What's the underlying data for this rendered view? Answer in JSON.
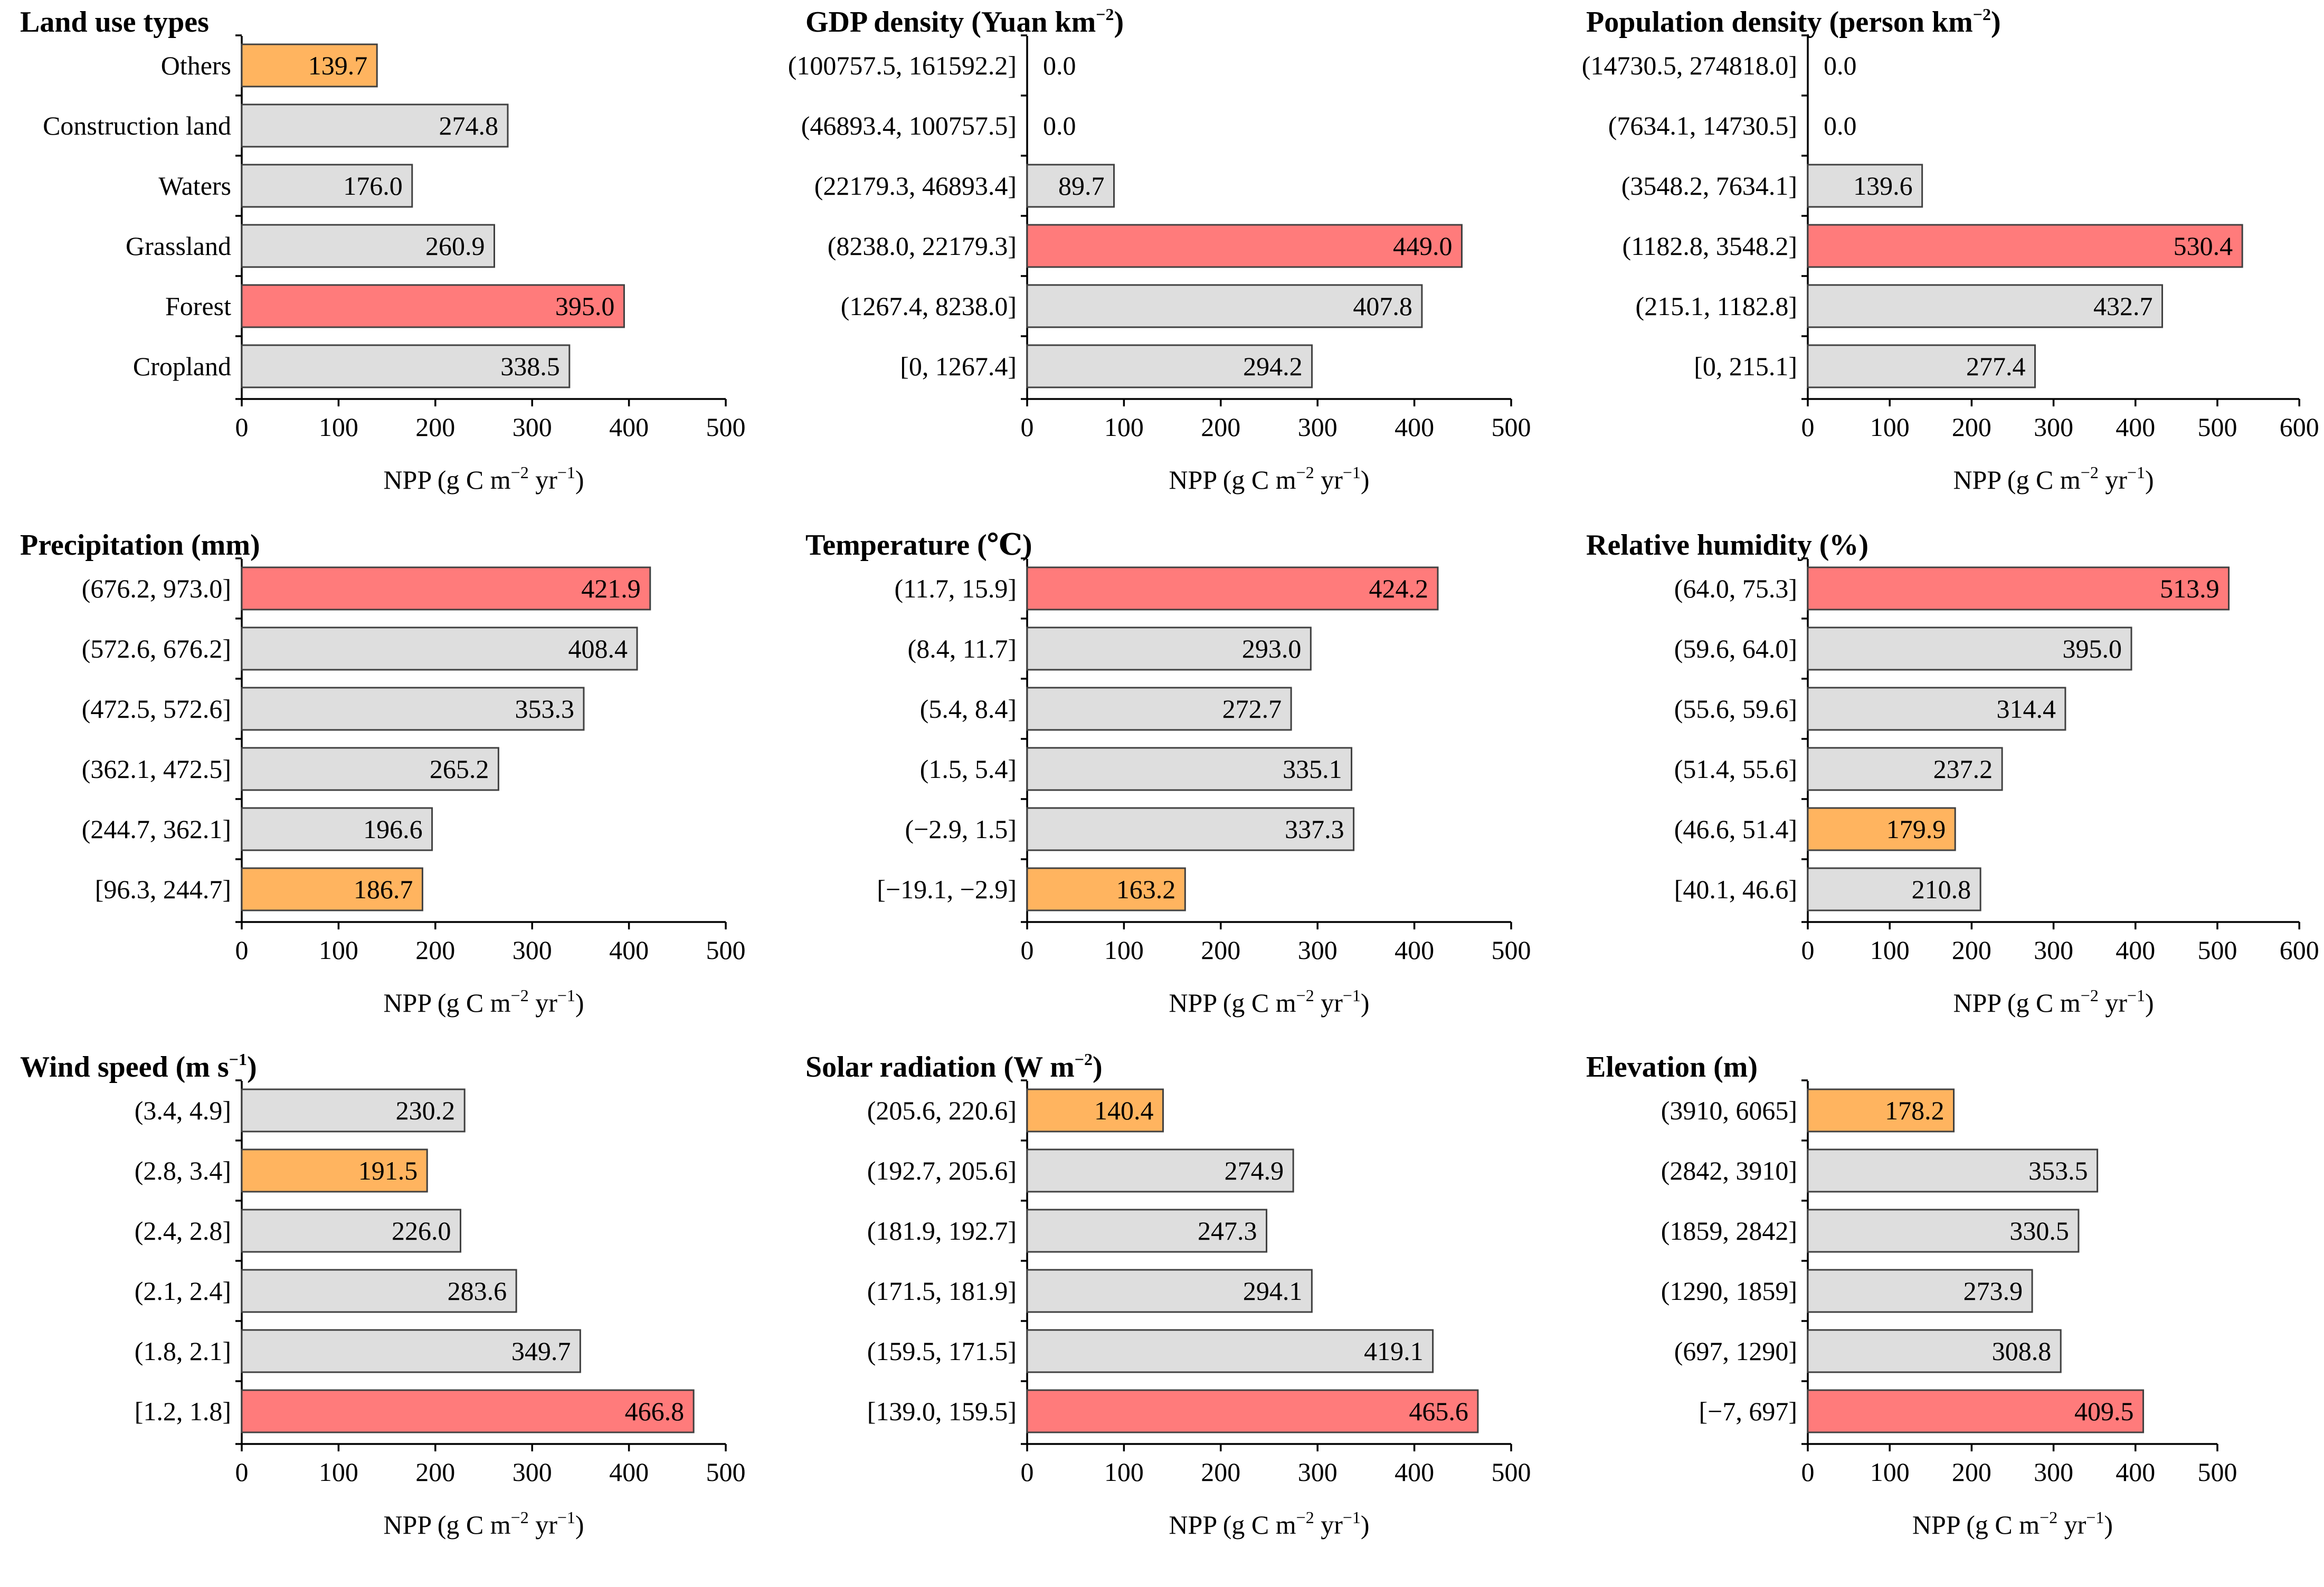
{
  "colors": {
    "highest": "#ff7b7b",
    "lowest": "#ffb45f",
    "default": "#dedede",
    "edge": "#404040"
  },
  "chart_data": [
    {
      "type": "bar",
      "orientation": "horizontal",
      "title": "Land use types",
      "categories": [
        "Others",
        "Construction land",
        "Waters",
        "Grassland",
        "Forest",
        "Cropland"
      ],
      "values": [
        139.7,
        274.8,
        176.0,
        260.9,
        395.0,
        338.5
      ],
      "value_labels": [
        "139.7",
        "274.8",
        "176.0",
        "260.9",
        "395.0",
        "338.5"
      ],
      "highlight": [
        "lowest",
        "default",
        "default",
        "default",
        "highest",
        "default"
      ],
      "xlim": [
        0,
        500
      ],
      "ticks": [
        0,
        100,
        200,
        300,
        400,
        500
      ],
      "xlabel": {
        "main": "NPP (g C m",
        "sup1": "−2",
        "mid": " yr",
        "sup2": "−1",
        "end": ")"
      }
    },
    {
      "type": "bar",
      "orientation": "horizontal",
      "title": "GDP density (Yuan km",
      "title_sup": "−2",
      "title_end": ")",
      "categories": [
        "(100757.5, 161592.2]",
        "(46893.4, 100757.5]",
        "(22179.3, 46893.4]",
        "(8238.0, 22179.3]",
        "(1267.4, 8238.0]",
        "[0, 1267.4]"
      ],
      "values": [
        0.0,
        0.0,
        89.7,
        449.0,
        407.8,
        294.2
      ],
      "value_labels": [
        "0.0",
        "0.0",
        "89.7",
        "449.0",
        "407.8",
        "294.2"
      ],
      "highlight": [
        "default",
        "default",
        "default",
        "highest",
        "default",
        "default"
      ],
      "xlim": [
        0,
        500
      ],
      "ticks": [
        0,
        100,
        200,
        300,
        400,
        500
      ],
      "xlabel": {
        "main": "NPP (g C m",
        "sup1": "−2",
        "mid": " yr",
        "sup2": "−1",
        "end": ")"
      }
    },
    {
      "type": "bar",
      "orientation": "horizontal",
      "title": "Population density (person km",
      "title_sup": "−2",
      "title_end": ")",
      "categories": [
        "(14730.5, 274818.0]",
        "(7634.1, 14730.5]",
        "(3548.2, 7634.1]",
        "(1182.8, 3548.2]",
        "(215.1, 1182.8]",
        "[0, 215.1]"
      ],
      "values": [
        0.0,
        0.0,
        139.6,
        530.4,
        432.7,
        277.4
      ],
      "value_labels": [
        "0.0",
        "0.0",
        "139.6",
        "530.4",
        "432.7",
        "277.4"
      ],
      "highlight": [
        "default",
        "default",
        "default",
        "highest",
        "default",
        "default"
      ],
      "xlim": [
        0,
        600
      ],
      "ticks": [
        0,
        100,
        200,
        300,
        400,
        500,
        600
      ],
      "xlabel": {
        "main": "NPP (g C m",
        "sup1": "−2",
        "mid": " yr",
        "sup2": "−1",
        "end": ")"
      }
    },
    {
      "type": "bar",
      "orientation": "horizontal",
      "title": "Precipitation (mm)",
      "categories": [
        "(676.2, 973.0]",
        "(572.6, 676.2]",
        "(472.5, 572.6]",
        "(362.1, 472.5]",
        "(244.7, 362.1]",
        "[96.3, 244.7]"
      ],
      "values": [
        421.9,
        408.4,
        353.3,
        265.2,
        196.6,
        186.7
      ],
      "value_labels": [
        "421.9",
        "408.4",
        "353.3",
        "265.2",
        "196.6",
        "186.7"
      ],
      "highlight": [
        "highest",
        "default",
        "default",
        "default",
        "default",
        "lowest"
      ],
      "xlim": [
        0,
        500
      ],
      "ticks": [
        0,
        100,
        200,
        300,
        400,
        500
      ],
      "xlabel": {
        "main": "NPP (g C m",
        "sup1": "−2",
        "mid": " yr",
        "sup2": "−1",
        "end": ")"
      }
    },
    {
      "type": "bar",
      "orientation": "horizontal",
      "title": "Temperature (℃)",
      "categories": [
        "(11.7, 15.9]",
        "(8.4, 11.7]",
        "(5.4, 8.4]",
        "(1.5, 5.4]",
        "(−2.9, 1.5]",
        "[−19.1, −2.9]"
      ],
      "values": [
        424.2,
        293.0,
        272.7,
        335.1,
        337.3,
        163.2
      ],
      "value_labels": [
        "424.2",
        "293.0",
        "272.7",
        "335.1",
        "337.3",
        "163.2"
      ],
      "highlight": [
        "highest",
        "default",
        "default",
        "default",
        "default",
        "lowest"
      ],
      "xlim": [
        0,
        500
      ],
      "ticks": [
        0,
        100,
        200,
        300,
        400,
        500
      ],
      "xlabel": {
        "main": "NPP (g C m",
        "sup1": "−2",
        "mid": " yr",
        "sup2": "−1",
        "end": ")"
      }
    },
    {
      "type": "bar",
      "orientation": "horizontal",
      "title": "Relative humidity (%)",
      "categories": [
        "(64.0, 75.3]",
        "(59.6, 64.0]",
        "(55.6, 59.6]",
        "(51.4, 55.6]",
        "(46.6, 51.4]",
        "[40.1, 46.6]"
      ],
      "values": [
        513.9,
        395.0,
        314.4,
        237.2,
        179.9,
        210.8
      ],
      "value_labels": [
        "513.9",
        "395.0",
        "314.4",
        "237.2",
        "179.9",
        "210.8"
      ],
      "highlight": [
        "highest",
        "default",
        "default",
        "default",
        "lowest",
        "default"
      ],
      "xlim": [
        0,
        600
      ],
      "ticks": [
        0,
        100,
        200,
        300,
        400,
        500,
        600
      ],
      "xlabel": {
        "main": "NPP (g C m",
        "sup1": "−2",
        "mid": " yr",
        "sup2": "−1",
        "end": ")"
      }
    },
    {
      "type": "bar",
      "orientation": "horizontal",
      "title": "Wind speed (m s",
      "title_sup": "−1",
      "title_end": ")",
      "categories": [
        "(3.4, 4.9]",
        "(2.8, 3.4]",
        "(2.4, 2.8]",
        "(2.1, 2.4]",
        "(1.8, 2.1]",
        "[1.2, 1.8]"
      ],
      "values": [
        230.2,
        191.5,
        226.0,
        283.6,
        349.7,
        466.8
      ],
      "value_labels": [
        "230.2",
        "191.5",
        "226.0",
        "283.6",
        "349.7",
        "466.8"
      ],
      "highlight": [
        "default",
        "lowest",
        "default",
        "default",
        "default",
        "highest"
      ],
      "xlim": [
        0,
        500
      ],
      "ticks": [
        0,
        100,
        200,
        300,
        400,
        500
      ],
      "xlabel": {
        "main": "NPP (g C m",
        "sup1": "−2",
        "mid": " yr",
        "sup2": "−1",
        "end": ")"
      }
    },
    {
      "type": "bar",
      "orientation": "horizontal",
      "title": "Solar radiation (W m",
      "title_sup": "−2",
      "title_end": ")",
      "categories": [
        "(205.6, 220.6]",
        "(192.7, 205.6]",
        "(181.9, 192.7]",
        "(171.5, 181.9]",
        "(159.5, 171.5]",
        "[139.0, 159.5]"
      ],
      "values": [
        140.4,
        274.9,
        247.3,
        294.1,
        419.1,
        465.6
      ],
      "value_labels": [
        "140.4",
        "274.9",
        "247.3",
        "294.1",
        "419.1",
        "465.6"
      ],
      "highlight": [
        "lowest",
        "default",
        "default",
        "default",
        "default",
        "highest"
      ],
      "xlim": [
        0,
        500
      ],
      "ticks": [
        0,
        100,
        200,
        300,
        400,
        500
      ],
      "xlabel": {
        "main": "NPP (g C m",
        "sup1": "−2",
        "mid": " yr",
        "sup2": "−1",
        "end": ")"
      }
    },
    {
      "type": "bar",
      "orientation": "horizontal",
      "title": "Elevation (m)",
      "categories": [
        "(3910, 6065]",
        "(2842, 3910]",
        "(1859, 2842]",
        "(1290, 1859]",
        "(697, 1290]",
        "[−7, 697]"
      ],
      "values": [
        178.2,
        353.5,
        330.5,
        273.9,
        308.8,
        409.5
      ],
      "value_labels": [
        "178.2",
        "353.5",
        "330.5",
        "273.9",
        "308.8",
        "409.5"
      ],
      "highlight": [
        "lowest",
        "default",
        "default",
        "default",
        "default",
        "highest"
      ],
      "xlim": [
        0,
        500
      ],
      "ticks": [
        0,
        100,
        200,
        300,
        400,
        500
      ],
      "xlabel": {
        "main": "NPP (g C m",
        "sup1": "−2",
        "mid": " yr",
        "sup2": "−1",
        "end": ")"
      }
    }
  ]
}
